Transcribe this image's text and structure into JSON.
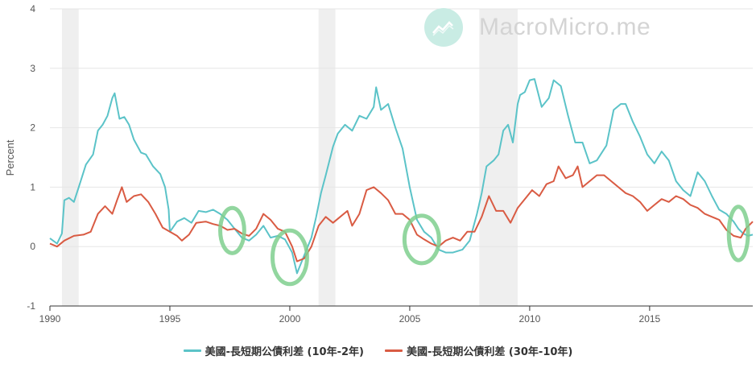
{
  "watermark": {
    "text": "MacroMicro.me",
    "icon": "chart-up-icon"
  },
  "chart_data": {
    "type": "line",
    "ylabel": "Percent",
    "xlim": [
      1990,
      2019.3
    ],
    "ylim": [
      -1,
      4
    ],
    "yticks": [
      "4",
      "3",
      "2",
      "1",
      "0",
      "-1"
    ],
    "xticks": [
      "1990",
      "1995",
      "2000",
      "2005",
      "2010",
      "2015"
    ],
    "grid": true,
    "legend_position": "bottom",
    "recessions": [
      [
        1990.5,
        1991.2
      ],
      [
        2001.2,
        2001.9
      ],
      [
        2007.9,
        2009.5
      ]
    ],
    "highlights": [
      {
        "center": [
          1997.6,
          0.27
        ],
        "rx": 0.5,
        "ry": 0.38
      },
      {
        "center": [
          2000.0,
          -0.18
        ],
        "rx": 0.72,
        "ry": 0.45
      },
      {
        "center": [
          2005.5,
          0.12
        ],
        "rx": 0.72,
        "ry": 0.4
      },
      {
        "center": [
          2018.7,
          0.22
        ],
        "rx": 0.4,
        "ry": 0.45
      }
    ],
    "series": [
      {
        "name": "美國-長短期公債利差 (10年-2年)",
        "color": "#5bc3c8",
        "points": [
          [
            1990,
            0.14
          ],
          [
            1990.3,
            0.05
          ],
          [
            1990.5,
            0.22
          ],
          [
            1990.6,
            0.78
          ],
          [
            1990.8,
            0.82
          ],
          [
            1991,
            0.75
          ],
          [
            1991.2,
            1.0
          ],
          [
            1991.5,
            1.38
          ],
          [
            1991.8,
            1.55
          ],
          [
            1992.0,
            1.95
          ],
          [
            1992.2,
            2.05
          ],
          [
            1992.4,
            2.2
          ],
          [
            1992.6,
            2.5
          ],
          [
            1992.7,
            2.58
          ],
          [
            1992.9,
            2.15
          ],
          [
            1993.1,
            2.18
          ],
          [
            1993.3,
            2.05
          ],
          [
            1993.5,
            1.8
          ],
          [
            1993.8,
            1.58
          ],
          [
            1994.0,
            1.55
          ],
          [
            1994.3,
            1.35
          ],
          [
            1994.6,
            1.22
          ],
          [
            1994.8,
            1.0
          ],
          [
            1994.95,
            0.62
          ],
          [
            1995.0,
            0.25
          ],
          [
            1995.3,
            0.42
          ],
          [
            1995.6,
            0.48
          ],
          [
            1995.9,
            0.4
          ],
          [
            1996.2,
            0.6
          ],
          [
            1996.5,
            0.58
          ],
          [
            1996.8,
            0.62
          ],
          [
            1997.1,
            0.55
          ],
          [
            1997.4,
            0.45
          ],
          [
            1997.7,
            0.3
          ],
          [
            1998.0,
            0.15
          ],
          [
            1998.3,
            0.1
          ],
          [
            1998.6,
            0.2
          ],
          [
            1998.9,
            0.35
          ],
          [
            1999.2,
            0.15
          ],
          [
            1999.5,
            0.18
          ],
          [
            1999.8,
            0.12
          ],
          [
            2000.1,
            -0.1
          ],
          [
            2000.3,
            -0.45
          ],
          [
            2000.6,
            -0.15
          ],
          [
            2000.9,
            0.15
          ],
          [
            2001.1,
            0.5
          ],
          [
            2001.3,
            0.9
          ],
          [
            2001.5,
            1.2
          ],
          [
            2001.8,
            1.68
          ],
          [
            2002.0,
            1.9
          ],
          [
            2002.3,
            2.05
          ],
          [
            2002.6,
            1.95
          ],
          [
            2002.9,
            2.2
          ],
          [
            2003.2,
            2.15
          ],
          [
            2003.5,
            2.35
          ],
          [
            2003.6,
            2.68
          ],
          [
            2003.8,
            2.3
          ],
          [
            2004.1,
            2.4
          ],
          [
            2004.4,
            2.0
          ],
          [
            2004.7,
            1.65
          ],
          [
            2005.0,
            1.0
          ],
          [
            2005.3,
            0.45
          ],
          [
            2005.6,
            0.25
          ],
          [
            2005.9,
            0.15
          ],
          [
            2006.2,
            -0.05
          ],
          [
            2006.5,
            -0.1
          ],
          [
            2006.8,
            -0.1
          ],
          [
            2007.2,
            -0.05
          ],
          [
            2007.5,
            0.1
          ],
          [
            2007.8,
            0.55
          ],
          [
            2008.0,
            0.9
          ],
          [
            2008.2,
            1.35
          ],
          [
            2008.5,
            1.45
          ],
          [
            2008.7,
            1.55
          ],
          [
            2008.9,
            1.95
          ],
          [
            2009.1,
            2.05
          ],
          [
            2009.3,
            1.75
          ],
          [
            2009.5,
            2.4
          ],
          [
            2009.6,
            2.55
          ],
          [
            2009.8,
            2.6
          ],
          [
            2010.0,
            2.8
          ],
          [
            2010.2,
            2.82
          ],
          [
            2010.5,
            2.35
          ],
          [
            2010.8,
            2.5
          ],
          [
            2011.0,
            2.8
          ],
          [
            2011.3,
            2.7
          ],
          [
            2011.6,
            2.2
          ],
          [
            2011.9,
            1.75
          ],
          [
            2012.2,
            1.75
          ],
          [
            2012.5,
            1.4
          ],
          [
            2012.8,
            1.45
          ],
          [
            2013.2,
            1.7
          ],
          [
            2013.5,
            2.3
          ],
          [
            2013.8,
            2.4
          ],
          [
            2014.0,
            2.4
          ],
          [
            2014.3,
            2.1
          ],
          [
            2014.6,
            1.85
          ],
          [
            2014.9,
            1.55
          ],
          [
            2015.2,
            1.4
          ],
          [
            2015.5,
            1.6
          ],
          [
            2015.8,
            1.45
          ],
          [
            2016.1,
            1.1
          ],
          [
            2016.4,
            0.95
          ],
          [
            2016.7,
            0.85
          ],
          [
            2017.0,
            1.25
          ],
          [
            2017.3,
            1.1
          ],
          [
            2017.6,
            0.85
          ],
          [
            2017.9,
            0.62
          ],
          [
            2018.2,
            0.55
          ],
          [
            2018.5,
            0.42
          ],
          [
            2018.7,
            0.3
          ],
          [
            2018.9,
            0.22
          ],
          [
            2019.1,
            0.18
          ],
          [
            2019.3,
            0.2
          ]
        ]
      },
      {
        "name": "美國-長短期公債利差 (30年-10年)",
        "color": "#d95b43",
        "points": [
          [
            1990,
            0.05
          ],
          [
            1990.3,
            0.0
          ],
          [
            1990.6,
            0.1
          ],
          [
            1991.0,
            0.18
          ],
          [
            1991.4,
            0.2
          ],
          [
            1991.7,
            0.25
          ],
          [
            1992.0,
            0.55
          ],
          [
            1992.3,
            0.68
          ],
          [
            1992.6,
            0.55
          ],
          [
            1992.8,
            0.78
          ],
          [
            1993.0,
            1.0
          ],
          [
            1993.2,
            0.75
          ],
          [
            1993.5,
            0.85
          ],
          [
            1993.8,
            0.88
          ],
          [
            1994.1,
            0.75
          ],
          [
            1994.4,
            0.55
          ],
          [
            1994.7,
            0.32
          ],
          [
            1995.0,
            0.25
          ],
          [
            1995.3,
            0.18
          ],
          [
            1995.5,
            0.1
          ],
          [
            1995.8,
            0.2
          ],
          [
            1996.1,
            0.4
          ],
          [
            1996.5,
            0.42
          ],
          [
            1996.8,
            0.38
          ],
          [
            1997.1,
            0.35
          ],
          [
            1997.4,
            0.28
          ],
          [
            1997.7,
            0.3
          ],
          [
            1998.0,
            0.22
          ],
          [
            1998.3,
            0.18
          ],
          [
            1998.6,
            0.3
          ],
          [
            1998.9,
            0.55
          ],
          [
            1999.2,
            0.45
          ],
          [
            1999.5,
            0.3
          ],
          [
            1999.8,
            0.25
          ],
          [
            2000.1,
            0.0
          ],
          [
            2000.3,
            -0.25
          ],
          [
            2000.6,
            -0.2
          ],
          [
            2000.9,
            0.0
          ],
          [
            2001.2,
            0.35
          ],
          [
            2001.5,
            0.5
          ],
          [
            2001.8,
            0.4
          ],
          [
            2002.1,
            0.5
          ],
          [
            2002.4,
            0.6
          ],
          [
            2002.6,
            0.35
          ],
          [
            2002.9,
            0.55
          ],
          [
            2003.2,
            0.95
          ],
          [
            2003.5,
            1.0
          ],
          [
            2003.8,
            0.9
          ],
          [
            2004.1,
            0.78
          ],
          [
            2004.4,
            0.55
          ],
          [
            2004.7,
            0.55
          ],
          [
            2005.0,
            0.45
          ],
          [
            2005.3,
            0.2
          ],
          [
            2005.6,
            0.12
          ],
          [
            2005.9,
            0.05
          ],
          [
            2006.2,
            0.0
          ],
          [
            2006.5,
            0.1
          ],
          [
            2006.8,
            0.15
          ],
          [
            2007.1,
            0.1
          ],
          [
            2007.4,
            0.25
          ],
          [
            2007.7,
            0.25
          ],
          [
            2008.0,
            0.5
          ],
          [
            2008.3,
            0.85
          ],
          [
            2008.6,
            0.6
          ],
          [
            2008.9,
            0.6
          ],
          [
            2009.2,
            0.4
          ],
          [
            2009.5,
            0.65
          ],
          [
            2009.8,
            0.8
          ],
          [
            2010.1,
            0.95
          ],
          [
            2010.4,
            0.85
          ],
          [
            2010.7,
            1.05
          ],
          [
            2011.0,
            1.1
          ],
          [
            2011.2,
            1.35
          ],
          [
            2011.5,
            1.15
          ],
          [
            2011.8,
            1.2
          ],
          [
            2012.0,
            1.35
          ],
          [
            2012.2,
            1.0
          ],
          [
            2012.5,
            1.1
          ],
          [
            2012.8,
            1.2
          ],
          [
            2013.1,
            1.2
          ],
          [
            2013.4,
            1.1
          ],
          [
            2013.7,
            1.0
          ],
          [
            2014.0,
            0.9
          ],
          [
            2014.3,
            0.85
          ],
          [
            2014.6,
            0.75
          ],
          [
            2014.9,
            0.6
          ],
          [
            2015.2,
            0.7
          ],
          [
            2015.5,
            0.8
          ],
          [
            2015.8,
            0.75
          ],
          [
            2016.1,
            0.85
          ],
          [
            2016.4,
            0.8
          ],
          [
            2016.7,
            0.7
          ],
          [
            2017.0,
            0.65
          ],
          [
            2017.3,
            0.55
          ],
          [
            2017.6,
            0.5
          ],
          [
            2017.9,
            0.45
          ],
          [
            2018.2,
            0.28
          ],
          [
            2018.5,
            0.18
          ],
          [
            2018.8,
            0.15
          ],
          [
            2019.0,
            0.3
          ],
          [
            2019.2,
            0.38
          ],
          [
            2019.3,
            0.42
          ]
        ]
      }
    ]
  }
}
